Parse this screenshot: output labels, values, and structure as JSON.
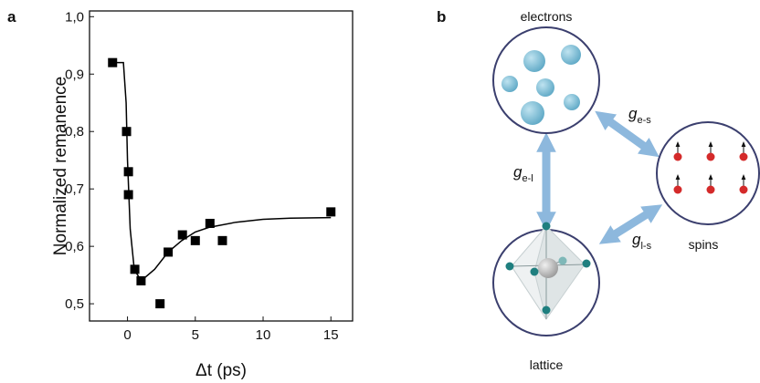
{
  "chart_data": {
    "type": "scatter",
    "xlabel": "Δt (ps)",
    "ylabel": "Normalized remanence",
    "xlim": [
      -2.8,
      16.6
    ],
    "ylim": [
      0.47,
      1.01
    ],
    "xticks": [
      0,
      5,
      10,
      15
    ],
    "yticks": [
      {
        "value": 0.5,
        "label": "0,5"
      },
      {
        "value": 0.6,
        "label": "0,6"
      },
      {
        "value": 0.7,
        "label": "0,7"
      },
      {
        "value": 0.8,
        "label": "0,8"
      },
      {
        "value": 0.9,
        "label": "0,9"
      },
      {
        "value": 1.0,
        "label": "1,0"
      }
    ],
    "series": [
      {
        "type": "scatter",
        "color": "#000000",
        "x": [
          -1.1,
          -0.07,
          0.07,
          0.07,
          0.54,
          1.0,
          2.4,
          3.0,
          4.05,
          5.0,
          6.08,
          7.0,
          15.0
        ],
        "values": [
          0.92,
          0.8,
          0.73,
          0.69,
          0.56,
          0.54,
          0.5,
          0.59,
          0.62,
          0.61,
          0.64,
          0.61,
          0.66
        ]
      },
      {
        "type": "line",
        "color": "#000000",
        "x": [
          -1.0,
          -0.3,
          -0.1,
          0,
          0.2,
          0.5,
          1.0,
          2,
          3,
          4,
          5,
          6,
          8,
          10,
          12,
          15
        ],
        "values": [
          0.92,
          0.92,
          0.85,
          0.75,
          0.63,
          0.56,
          0.54,
          0.56,
          0.59,
          0.61,
          0.625,
          0.633,
          0.642,
          0.647,
          0.649,
          0.65
        ]
      }
    ]
  },
  "panel_labels": [
    "a",
    "b"
  ],
  "diagram": {
    "nodes": [
      {
        "label": "electrons"
      },
      {
        "label": "spins"
      },
      {
        "label": "lattice"
      }
    ],
    "edges": [
      {
        "symbol": "g",
        "subscript": "e-s"
      },
      {
        "symbol": "g",
        "subscript": "e-l"
      },
      {
        "symbol": "g",
        "subscript": "l-s"
      }
    ]
  }
}
